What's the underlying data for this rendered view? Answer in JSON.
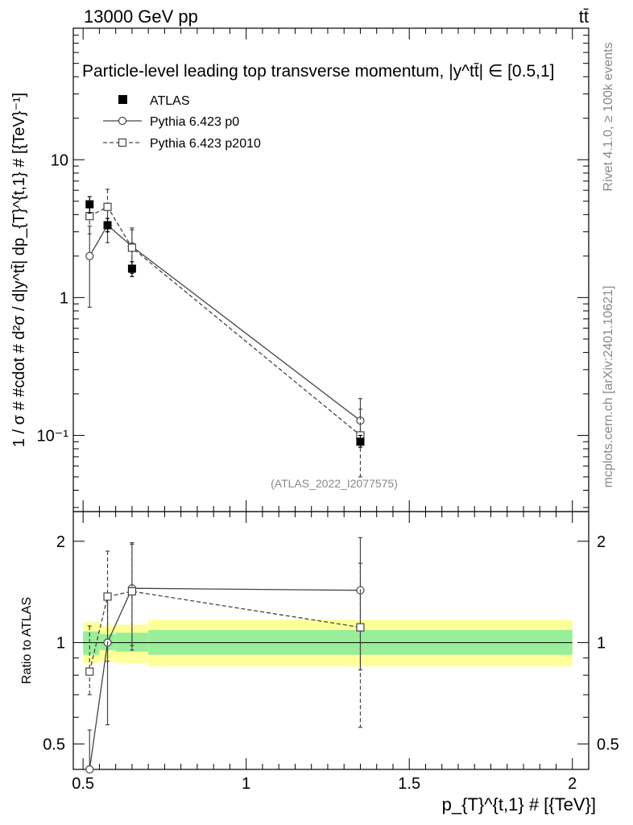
{
  "header": {
    "energy_label": "13000 GeV pp",
    "process_label": "tt̄",
    "rivet_label": "Rivet 4.1.0, ≥ 100k events",
    "mcplots_label": "mcplots.cern.ch [arXiv:2401.10621]",
    "analysis_id": "(ATLAS_2022_I2077575)"
  },
  "chart_data": [
    {
      "type": "scatter",
      "panel": "main",
      "title": "Particle-level leading top transverse momentum, |y^tt̄| ∈ [0.5,1]",
      "ylabel": "1 / σ # #cdot # d²σ / d|y^tt̄| dp_{T}^{t,1} # [{TeV}⁻¹]",
      "xlabel": "",
      "yscale": "log",
      "ylim": [
        0.028,
        90
      ],
      "xlim": [
        0.47,
        2.05
      ],
      "y_ticks": [
        {
          "value": 10,
          "label": "10"
        },
        {
          "value": 1,
          "label": "1"
        },
        {
          "value": 0.1,
          "label": "10⁻¹"
        }
      ],
      "legend": [
        {
          "key": "atlas",
          "label": "ATLAS",
          "marker": "filled-square"
        },
        {
          "key": "p0",
          "label": "Pythia 6.423 p0",
          "marker": "open-circle",
          "line": "solid"
        },
        {
          "key": "p2010",
          "label": "Pythia 6.423 p2010",
          "marker": "open-square",
          "line": "dashed"
        }
      ],
      "series": [
        {
          "name": "ATLAS",
          "key": "atlas",
          "x": [
            0.52,
            0.575,
            0.65,
            1.35
          ],
          "xerr": [
            0.02,
            0.025,
            0.05,
            0.65
          ],
          "y": [
            4.75,
            3.35,
            1.62,
            0.09
          ],
          "ylo": [
            4.1,
            3.0,
            1.42,
            0.082
          ],
          "yhi": [
            5.4,
            3.75,
            1.82,
            0.1
          ]
        },
        {
          "name": "Pythia 6.423 p0",
          "key": "p0",
          "x": [
            0.52,
            0.575,
            0.65,
            1.35
          ],
          "y": [
            2.0,
            3.35,
            2.35,
            0.128
          ],
          "ylo": [
            0.85,
            2.5,
            1.5,
            0.085
          ],
          "yhi": [
            3.3,
            4.5,
            3.2,
            0.185
          ]
        },
        {
          "name": "Pythia 6.423 p2010",
          "key": "p2010",
          "x": [
            0.52,
            0.575,
            0.65,
            1.35
          ],
          "y": [
            3.9,
            4.55,
            2.3,
            0.1
          ],
          "ylo": [
            2.9,
            3.0,
            1.5,
            0.05
          ],
          "yhi": [
            5.0,
            6.1,
            3.1,
            0.155
          ]
        }
      ]
    },
    {
      "type": "scatter",
      "panel": "ratio",
      "ylabel": "Ratio to ATLAS",
      "xlabel": "p_{T}^{t,1} # [{TeV}]",
      "yscale": "log",
      "ylim": [
        0.42,
        2.45
      ],
      "xlim": [
        0.47,
        2.05
      ],
      "y_ticks": [
        {
          "value": 2,
          "label": "2"
        },
        {
          "value": 1,
          "label": "1"
        },
        {
          "value": 0.5,
          "label": "0.5"
        }
      ],
      "x_ticks": [
        {
          "value": 0.5,
          "label": "0.5"
        },
        {
          "value": 1,
          "label": "1"
        },
        {
          "value": 1.5,
          "label": "1.5"
        },
        {
          "value": 2,
          "label": "2"
        }
      ],
      "bands": [
        {
          "x0": 0.5,
          "x1": 0.55,
          "green": [
            0.92,
            1.08
          ],
          "yellow": [
            0.87,
            1.15
          ]
        },
        {
          "x0": 0.55,
          "x1": 0.6,
          "green": [
            0.95,
            1.06
          ],
          "yellow": [
            0.88,
            1.12
          ]
        },
        {
          "x0": 0.6,
          "x1": 0.7,
          "green": [
            0.94,
            1.07
          ],
          "yellow": [
            0.87,
            1.13
          ]
        },
        {
          "x0": 0.7,
          "x1": 2.0,
          "green": [
            0.92,
            1.09
          ],
          "yellow": [
            0.85,
            1.17
          ]
        }
      ],
      "series": [
        {
          "name": "Pythia 6.423 p0",
          "key": "p0",
          "x": [
            0.52,
            0.575,
            0.65,
            1.35
          ],
          "y": [
            0.42,
            1.0,
            1.45,
            1.43
          ],
          "ylo": [
            0.42,
            0.57,
            0.95,
            0.83
          ],
          "yhi": [
            0.55,
            1.39,
            1.98,
            2.05
          ]
        },
        {
          "name": "Pythia 6.423 p2010",
          "key": "p2010",
          "x": [
            0.52,
            0.575,
            0.65,
            1.35
          ],
          "y": [
            0.82,
            1.37,
            1.42,
            1.11
          ],
          "ylo": [
            0.7,
            0.88,
            0.98,
            0.56
          ],
          "yhi": [
            1.12,
            1.87,
            1.96,
            1.72
          ]
        }
      ]
    }
  ]
}
